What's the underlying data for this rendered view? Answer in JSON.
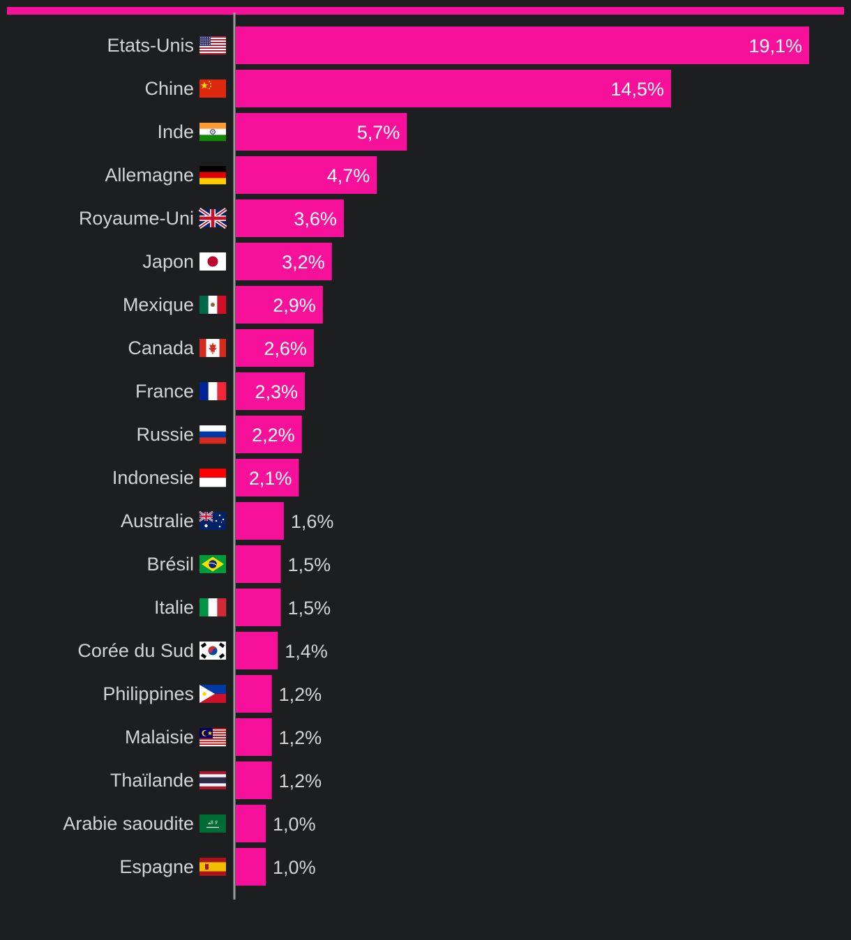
{
  "colors": {
    "background": "#1d1e20",
    "bar": "#f7119a",
    "top_bar": "#f7119a",
    "axis": "#9a9a9a",
    "label": "#d3d3d3",
    "value_inside": "#ffffff",
    "value_outside": "#d3d3d3"
  },
  "chart_data": {
    "type": "bar",
    "orientation": "horizontal",
    "title": "",
    "xlabel": "",
    "ylabel": "",
    "xlim": [
      0,
      19.1
    ],
    "grid": false,
    "legend": "none",
    "categories": [
      "Etats-Unis",
      "Chine",
      "Inde",
      "Allemagne",
      "Royaume-Uni",
      "Japon",
      "Mexique",
      "Canada",
      "France",
      "Russie",
      "Indonesie",
      "Australie",
      "Brésil",
      "Italie",
      "Corée du Sud",
      "Philippines",
      "Malaisie",
      "Thaïlande",
      "Arabie saoudite",
      "Espagne"
    ],
    "values": [
      19.1,
      14.5,
      5.7,
      4.7,
      3.6,
      3.2,
      2.9,
      2.6,
      2.3,
      2.2,
      2.1,
      1.6,
      1.5,
      1.5,
      1.4,
      1.2,
      1.2,
      1.2,
      1.0,
      1.0
    ],
    "value_labels": [
      "19,1%",
      "14,5%",
      "5,7%",
      "4,7%",
      "3,6%",
      "3,2%",
      "2,9%",
      "2,6%",
      "2,3%",
      "2,2%",
      "2,1%",
      "1,6%",
      "1,5%",
      "1,5%",
      "1,4%",
      "1,2%",
      "1,2%",
      "1,2%",
      "1,0%",
      "1,0%"
    ],
    "flags": [
      "us-flag-icon",
      "cn-flag-icon",
      "in-flag-icon",
      "de-flag-icon",
      "gb-flag-icon",
      "jp-flag-icon",
      "mx-flag-icon",
      "ca-flag-icon",
      "fr-flag-icon",
      "ru-flag-icon",
      "id-flag-icon",
      "au-flag-icon",
      "br-flag-icon",
      "it-flag-icon",
      "kr-flag-icon",
      "ph-flag-icon",
      "my-flag-icon",
      "th-flag-icon",
      "sa-flag-icon",
      "es-flag-icon"
    ]
  }
}
